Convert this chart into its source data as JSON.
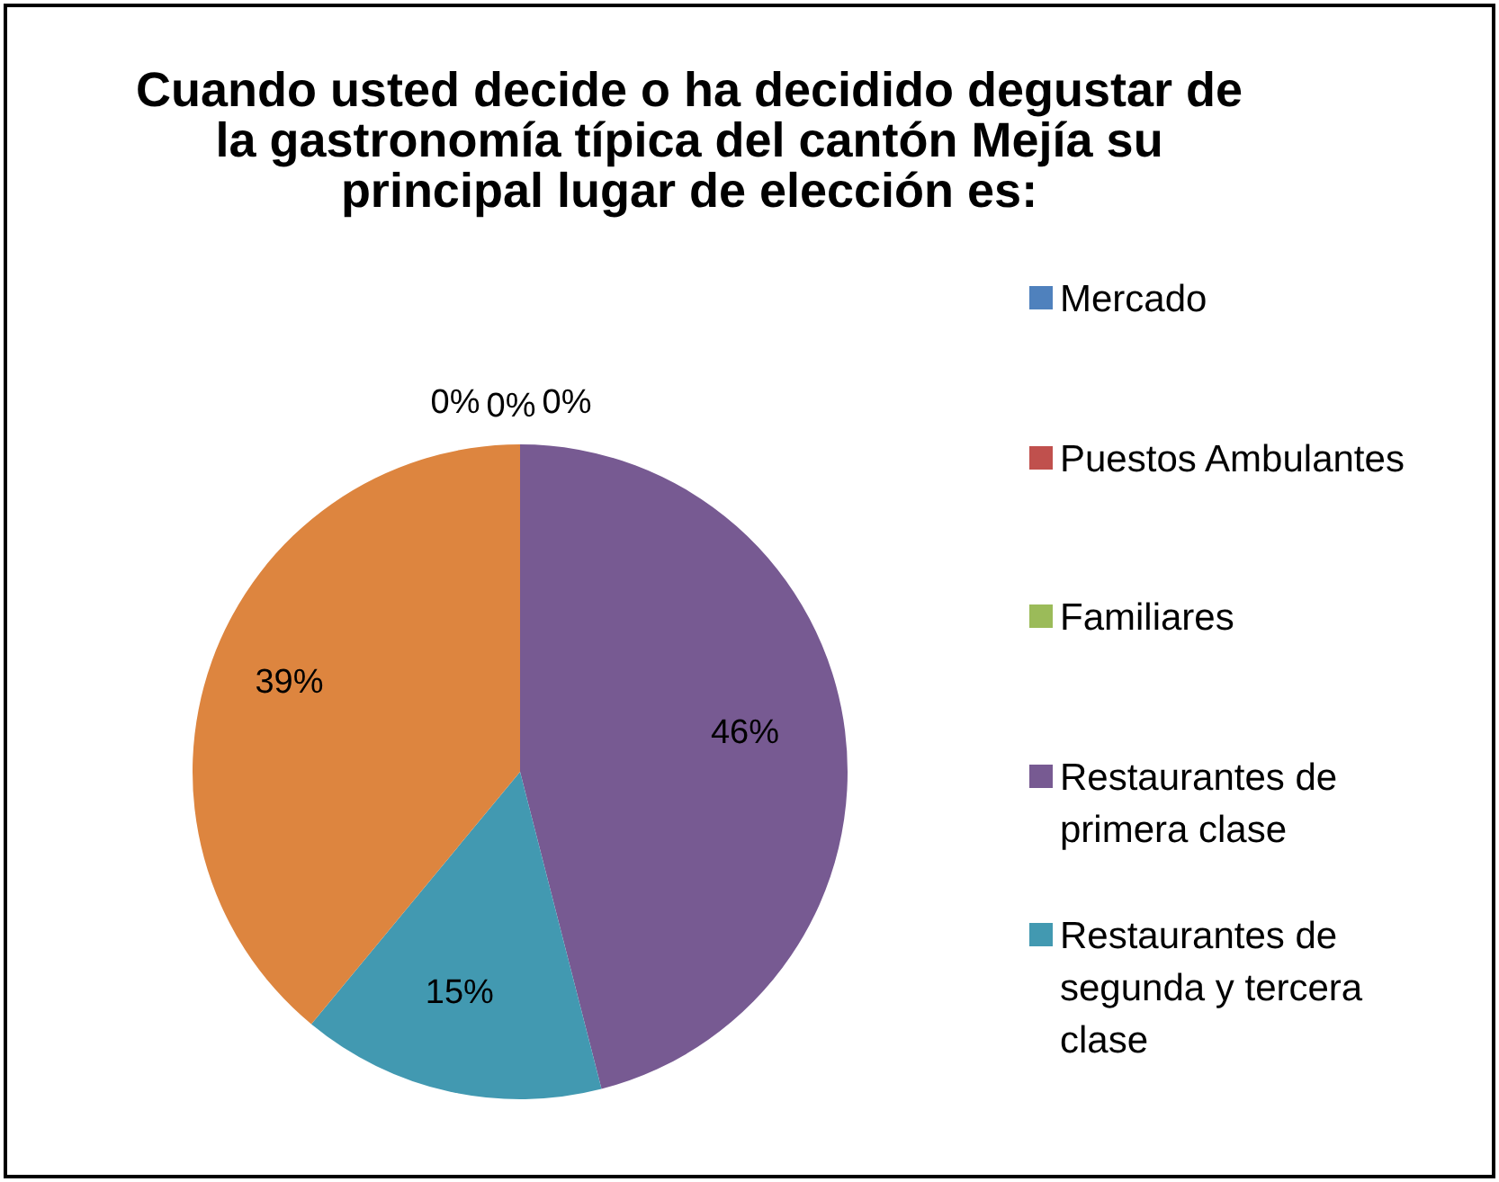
{
  "chart_data": {
    "type": "pie",
    "title": "Cuando usted decide o ha decidido degustar de la gastronomía típica del cantón Mejía su principal lugar de elección es:",
    "categories": [
      "Mercado",
      "Puestos Ambulantes",
      "Familiares",
      "Restaurantes de primera clase",
      "Restaurantes de segunda y tercera clase",
      null
    ],
    "values": [
      0,
      0,
      0,
      46,
      15,
      39
    ],
    "colors": [
      "#4f81bd",
      "#c0504d",
      "#9bbb59",
      "#775a92",
      "#4299b1",
      "#dd853f"
    ],
    "value_labels": [
      "0%",
      "0%",
      "0%",
      "46%",
      "15%",
      "39%"
    ],
    "legend": "right"
  }
}
